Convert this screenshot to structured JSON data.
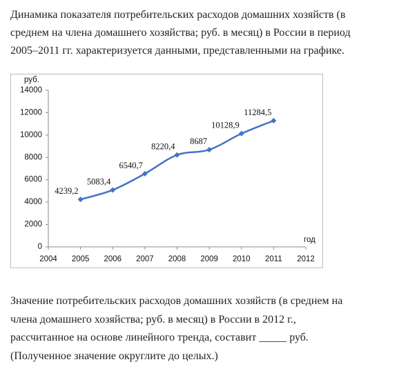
{
  "intro": [
    "Динамика показателя потребительских расходов домашних хозяйств (в",
    "среднем на члена домашнего хозяйства; руб. в месяц) в России в период",
    "2005–2011 гг. характеризуется данными, представленными на графике."
  ],
  "chart_data": {
    "type": "line",
    "ylabel": "руб.",
    "xlabel": "год",
    "x": [
      2005,
      2006,
      2007,
      2008,
      2009,
      2010,
      2011
    ],
    "series": [
      {
        "color": "#4472c4",
        "values": [
          4239.2,
          5083.4,
          6540.7,
          8220.4,
          8687,
          10128.9,
          11284.5
        ],
        "value_labels": [
          "4239,2",
          "5083,4",
          "6540,7",
          "8220,4",
          "8687",
          "10128,9",
          "11284,5"
        ]
      }
    ],
    "xlim": [
      2004,
      2012
    ],
    "xticks": [
      2004,
      2005,
      2006,
      2007,
      2008,
      2009,
      2010,
      2011,
      2012
    ],
    "ylim": [
      0,
      14000
    ],
    "yticks": [
      0,
      2000,
      4000,
      6000,
      8000,
      10000,
      12000,
      14000
    ],
    "grid": false
  },
  "question": [
    "Значение потребительских расходов домашних хозяйств (в среднем на",
    "члена домашнего хозяйства; руб. в месяц) в России в 2012 г.,",
    "рассчитанное на основе линейного тренда, составит _____ руб.",
    "(Полученное значение округлите до целых.)"
  ]
}
